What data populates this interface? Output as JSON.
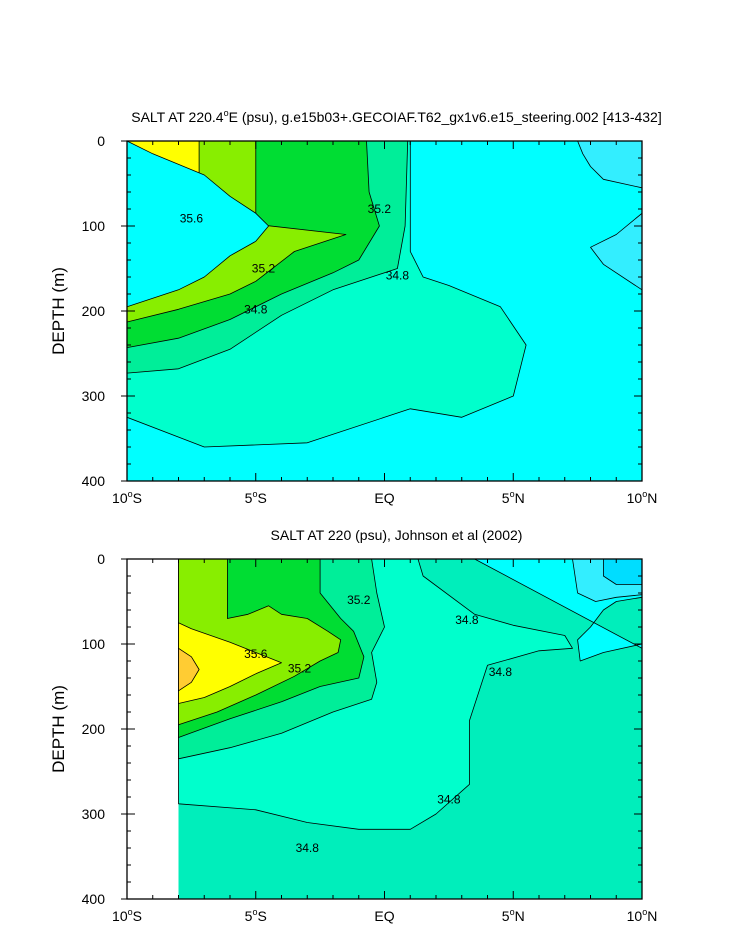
{
  "chart_data": [
    {
      "type": "contour",
      "title": "SALT AT 220.4°E (psu), g.e15b03+.GECOIAF.T62_gx1v6.e15_steering.002 [413-432]",
      "title_parts": {
        "pre": "SALT AT 220.4",
        "sup": "o",
        "post": "E (psu), g.e15b03+.GECOIAF.T62_gx1v6.e15_steering.002 [413-432]"
      },
      "ylabel": "DEPTH (m)",
      "xlabel": "",
      "xlim": [
        -10,
        10
      ],
      "ylim": [
        400,
        0
      ],
      "x_ticks": [
        {
          "value": -10,
          "num": "10",
          "sup": "o",
          "hem": "S"
        },
        {
          "value": -5,
          "num": "5",
          "sup": "o",
          "hem": "S"
        },
        {
          "value": 0,
          "num": "EQ",
          "sup": "",
          "hem": ""
        },
        {
          "value": 5,
          "num": "5",
          "sup": "o",
          "hem": "N"
        },
        {
          "value": 10,
          "num": "10",
          "sup": "o",
          "hem": "N"
        }
      ],
      "y_ticks": [
        0,
        100,
        200,
        300,
        400
      ],
      "y_tick_labels": [
        "0",
        "100",
        "200",
        "300",
        "400"
      ],
      "levels": [
        34.6,
        34.8,
        35.0,
        35.2,
        35.4,
        35.6,
        35.8
      ],
      "level_colors": [
        "#00ffff",
        "#00ffcc",
        "#00ee99",
        "#00dd33",
        "#88ee00",
        "#ffff00",
        "#ffcc33"
      ],
      "background_color": "#00ffff",
      "filled_regions": [
        {
          "color": "#00ffcc",
          "outline": [
            [
              -10,
              325
            ],
            [
              -7,
              360
            ],
            [
              -3,
              355
            ],
            [
              0,
              325
            ],
            [
              1,
              315
            ],
            [
              3,
              325
            ],
            [
              5,
              300
            ],
            [
              5.5,
              240
            ],
            [
              4.5,
              195
            ],
            [
              2.5,
              170
            ],
            [
              1.5,
              160
            ],
            [
              1,
              130
            ],
            [
              1,
              0
            ],
            [
              -10,
              0
            ]
          ]
        },
        {
          "color": "#00ee99",
          "outline": [
            [
              -10,
              273
            ],
            [
              -8,
              268
            ],
            [
              -6,
              245
            ],
            [
              -4,
              205
            ],
            [
              -2,
              175
            ],
            [
              0.5,
              150
            ],
            [
              0.8,
              100
            ],
            [
              0.9,
              0
            ],
            [
              -10,
              0
            ]
          ]
        },
        {
          "color": "#00dd33",
          "outline": [
            [
              -10,
              243
            ],
            [
              -8,
              232
            ],
            [
              -6,
              210
            ],
            [
              -4,
              180
            ],
            [
              -2,
              155
            ],
            [
              -1,
              140
            ],
            [
              -0.2,
              100
            ],
            [
              -0.6,
              60
            ],
            [
              -0.7,
              0
            ],
            [
              -10,
              0
            ]
          ]
        },
        {
          "color": "#88ee00",
          "outline": [
            [
              -10,
              213
            ],
            [
              -8,
              198
            ],
            [
              -6,
              180
            ],
            [
              -5,
              165
            ],
            [
              -3.5,
              130
            ],
            [
              -1.5,
              110
            ],
            [
              -5,
              98
            ],
            [
              -5,
              0
            ],
            [
              -10,
              0
            ]
          ]
        },
        {
          "color": "#ffff00",
          "outline": [
            [
              -10,
              180
            ],
            [
              -9,
              168
            ],
            [
              -7,
              150
            ],
            [
              -6.2,
              120
            ],
            [
              -7.2,
              100
            ],
            [
              -7.2,
              0
            ],
            [
              -10,
              0
            ]
          ]
        },
        {
          "color": "#ffcc33",
          "outline": [
            [
              -10,
              100
            ],
            [
              -9.3,
              110
            ],
            [
              -9,
              125
            ],
            [
              -9.3,
              145
            ],
            [
              -10,
              158
            ]
          ]
        },
        {
          "color": "#00ffff",
          "outline": [
            [
              -10,
              195
            ],
            [
              -9,
              185
            ],
            [
              -8,
              175
            ],
            [
              -7,
              160
            ],
            [
              -6,
              135
            ],
            [
              -5,
              118
            ],
            [
              -4.5,
              100
            ],
            [
              -5,
              85
            ],
            [
              -6,
              65
            ],
            [
              -7,
              40
            ],
            [
              -9,
              15
            ],
            [
              -10,
              0
            ]
          ]
        },
        {
          "color": "#33eeff",
          "outline": [
            [
              7.5,
              0
            ],
            [
              10,
              0
            ],
            [
              10,
              55
            ],
            [
              8.5,
              45
            ],
            [
              8,
              30
            ],
            [
              7.7,
              15
            ]
          ]
        },
        {
          "color": "#33eeff",
          "outline": [
            [
              10,
              85
            ],
            [
              9,
              110
            ],
            [
              8,
              125
            ],
            [
              8.5,
              145
            ],
            [
              10,
              175
            ]
          ]
        }
      ],
      "contour_labels": [
        {
          "text": "35.6",
          "x": -7.5,
          "y": 91
        },
        {
          "text": "35.2",
          "x": -4.7,
          "y": 150
        },
        {
          "text": "34.8",
          "x": -5.0,
          "y": 198
        },
        {
          "text": "35.2",
          "x": -0.2,
          "y": 80
        },
        {
          "text": "34.8",
          "x": 0.5,
          "y": 158
        }
      ]
    },
    {
      "type": "contour",
      "title": "SALT AT 220 (psu), Johnson et al (2002)",
      "title_parts": {
        "pre": "SALT AT 220 (psu), Johnson et al (2002)",
        "sup": "",
        "post": ""
      },
      "ylabel": "DEPTH (m)",
      "xlabel": "",
      "xlim": [
        -10,
        10
      ],
      "ylim": [
        400,
        0
      ],
      "data_x_range": [
        -8,
        10
      ],
      "x_ticks": [
        {
          "value": -10,
          "num": "10",
          "sup": "o",
          "hem": "S"
        },
        {
          "value": -5,
          "num": "5",
          "sup": "o",
          "hem": "S"
        },
        {
          "value": 0,
          "num": "EQ",
          "sup": "",
          "hem": ""
        },
        {
          "value": 5,
          "num": "5",
          "sup": "o",
          "hem": "N"
        },
        {
          "value": 10,
          "num": "10",
          "sup": "o",
          "hem": "N"
        }
      ],
      "y_ticks": [
        0,
        100,
        200,
        300,
        400
      ],
      "y_tick_labels": [
        "0",
        "100",
        "200",
        "300",
        "400"
      ],
      "levels": [
        34.6,
        34.8,
        35.0,
        35.2,
        35.4,
        35.6,
        35.8
      ],
      "level_colors": [
        "#00ffff",
        "#00ffcc",
        "#00ee99",
        "#00dd33",
        "#88ee00",
        "#ffff00",
        "#ffcc33"
      ],
      "background_color": "#00eebb",
      "filled_regions": [
        {
          "color": "#00ffcc",
          "outline": [
            [
              -8,
              288
            ],
            [
              -5,
              295
            ],
            [
              -3,
              310
            ],
            [
              -1,
              318
            ],
            [
              1,
              318
            ],
            [
              2,
              300
            ],
            [
              3.3,
              265
            ],
            [
              3.3,
              190
            ],
            [
              4,
              125
            ],
            [
              6,
              108
            ],
            [
              7.3,
              105
            ],
            [
              7,
              90
            ],
            [
              5,
              78
            ],
            [
              3.5,
              65
            ],
            [
              1.5,
              20
            ],
            [
              1.3,
              0
            ],
            [
              -8,
              0
            ]
          ]
        },
        {
          "color": "#00ee99",
          "outline": [
            [
              -8,
              235
            ],
            [
              -6,
              222
            ],
            [
              -4,
              205
            ],
            [
              -2,
              180
            ],
            [
              -0.5,
              165
            ],
            [
              -0.3,
              145
            ],
            [
              -0.5,
              110
            ],
            [
              0,
              80
            ],
            [
              -0.3,
              40
            ],
            [
              -0.5,
              0
            ],
            [
              -8,
              0
            ]
          ]
        },
        {
          "color": "#00dd33",
          "outline": [
            [
              -8,
              210
            ],
            [
              -6,
              188
            ],
            [
              -4,
              168
            ],
            [
              -2.5,
              150
            ],
            [
              -1,
              140
            ],
            [
              -0.8,
              115
            ],
            [
              -1.2,
              85
            ],
            [
              -1.7,
              70
            ],
            [
              -2.5,
              40
            ],
            [
              -2.5,
              0
            ],
            [
              -8,
              0
            ]
          ]
        },
        {
          "color": "#88ee00",
          "outline": [
            [
              -8,
              195
            ],
            [
              -6.5,
              180
            ],
            [
              -5,
              160
            ],
            [
              -3.5,
              138
            ],
            [
              -2.5,
              120
            ],
            [
              -1.8,
              110
            ],
            [
              -1.7,
              95
            ],
            [
              -2.2,
              85
            ],
            [
              -3,
              70
            ],
            [
              -4,
              65
            ],
            [
              -4.5,
              55
            ],
            [
              -5.3,
              65
            ],
            [
              -6.1,
              70
            ],
            [
              -6.1,
              0
            ],
            [
              -8,
              0
            ]
          ]
        },
        {
          "color": "#ffff00",
          "outline": [
            [
              -8,
              170
            ],
            [
              -7,
              163
            ],
            [
              -6,
              150
            ],
            [
              -5,
              135
            ],
            [
              -4,
              122
            ],
            [
              -5,
              110
            ],
            [
              -6,
              98
            ],
            [
              -7.5,
              82
            ],
            [
              -8,
              75
            ]
          ]
        },
        {
          "color": "#ffcc33",
          "outline": [
            [
              -8,
              105
            ],
            [
              -7.5,
              115
            ],
            [
              -7.2,
              130
            ],
            [
              -7.5,
              145
            ],
            [
              -8,
              155
            ]
          ]
        },
        {
          "color": "#00ffff",
          "outline": [
            [
              3.5,
              0
            ],
            [
              10,
              0
            ],
            [
              10,
              45
            ],
            [
              9,
              50
            ],
            [
              8.5,
              60
            ],
            [
              8,
              80
            ],
            [
              7.5,
              95
            ],
            [
              7.6,
              120
            ],
            [
              8.5,
              110
            ],
            [
              10,
              100
            ],
            [
              10,
              105
            ]
          ]
        },
        {
          "color": "#33eeff",
          "outline": [
            [
              7.3,
              0
            ],
            [
              10,
              0
            ],
            [
              10,
              42
            ],
            [
              9,
              45
            ],
            [
              8.2,
              50
            ],
            [
              7.5,
              40
            ]
          ]
        },
        {
          "color": "#00ddff",
          "outline": [
            [
              8.5,
              0
            ],
            [
              10,
              0
            ],
            [
              10,
              30
            ],
            [
              9,
              30
            ],
            [
              8.5,
              20
            ]
          ]
        }
      ],
      "contour_labels": [
        {
          "text": "35.2",
          "x": -1.0,
          "y": 48
        },
        {
          "text": "35.6",
          "x": -5.0,
          "y": 112
        },
        {
          "text": "35.2",
          "x": -3.3,
          "y": 129
        },
        {
          "text": "34.8",
          "x": 3.2,
          "y": 72
        },
        {
          "text": "34.8",
          "x": 4.5,
          "y": 133
        },
        {
          "text": "34.8",
          "x": 2.5,
          "y": 283
        },
        {
          "text": "34.8",
          "x": -3.0,
          "y": 340
        }
      ]
    }
  ]
}
